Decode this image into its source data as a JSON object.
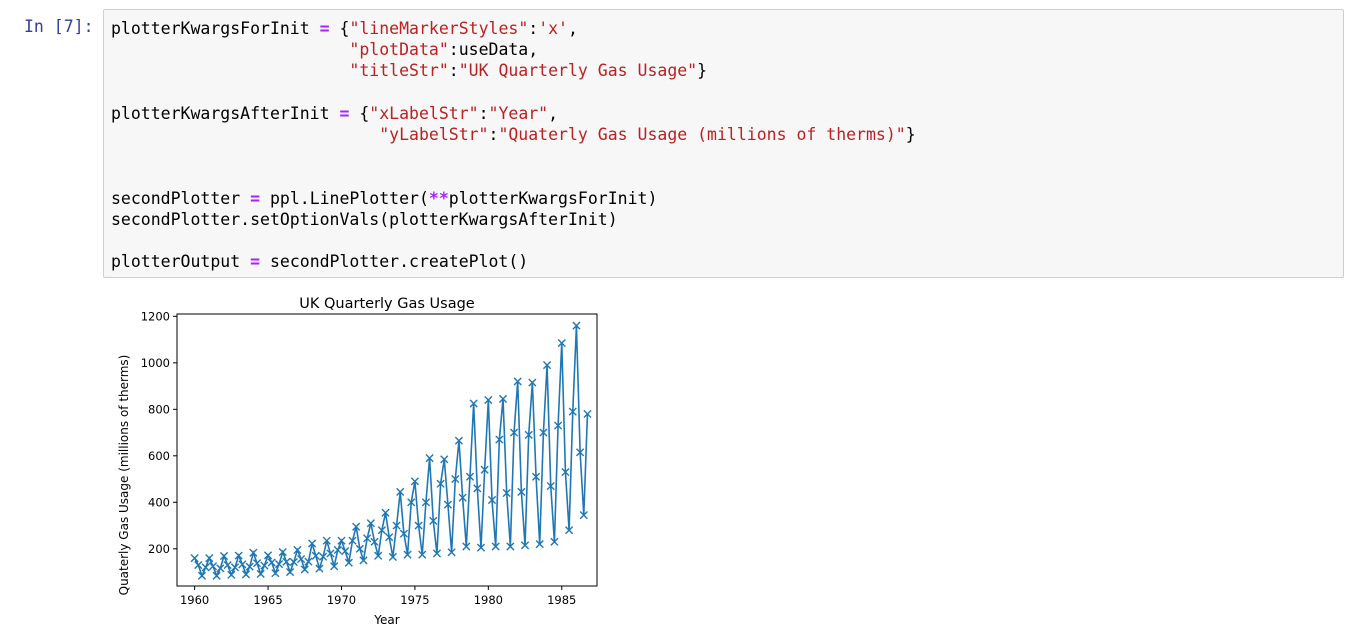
{
  "notebook": {
    "prompt": "In [7]:",
    "code": {
      "line1": {
        "var": "plotterKwargsForInit",
        "eq": "=",
        "open": "{",
        "k1": "\"lineMarkerStyles\"",
        "c1": ":",
        "v1": "'x'",
        "comma": ","
      },
      "line2": {
        "k": "\"plotData\"",
        "c": ":",
        "v": "useData",
        "comma": ","
      },
      "line3": {
        "k": "\"titleStr\"",
        "c": ":",
        "v": "\"UK Quarterly Gas Usage\"",
        "close": "}"
      },
      "line5": {
        "var": "plotterKwargsAfterInit",
        "eq": "=",
        "open": "{",
        "k": "\"xLabelStr\"",
        "c": ":",
        "v": "\"Year\"",
        "comma": ","
      },
      "line6": {
        "k": "\"yLabelStr\"",
        "c": ":",
        "v": "\"Quaterly Gas Usage (millions of therms)\"",
        "close": "}"
      },
      "line9": {
        "var": "secondPlotter",
        "eq": "=",
        "call_pre": "ppl.LinePlotter(",
        "op": "**",
        "call_post": "plotterKwargsForInit)"
      },
      "line10": {
        "text": "secondPlotter.setOptionVals(plotterKwargsAfterInit)"
      },
      "line12": {
        "var": "plotterOutput",
        "eq": "=",
        "rhs": "secondPlotter.createPlot()"
      }
    }
  },
  "chart_data": {
    "type": "line",
    "title": "UK Quarterly Gas Usage",
    "xlabel": "Year",
    "ylabel": "Quaterly Gas Usage (millions of therms)",
    "marker": "x",
    "color": "#1f77b4",
    "xlim": [
      1958.8,
      1987.4
    ],
    "ylim": [
      40,
      1210
    ],
    "xticks": [
      1960,
      1965,
      1970,
      1975,
      1980,
      1985
    ],
    "xtick_labels": [
      "1960",
      "1965",
      "1970",
      "1975",
      "1980",
      "1985"
    ],
    "yticks": [
      200,
      400,
      600,
      800,
      1000,
      1200
    ],
    "ytick_labels": [
      "200",
      "400",
      "600",
      "800",
      "1000",
      "1200"
    ],
    "series": [
      {
        "x": [
          1960.0,
          1960.25,
          1960.5,
          1960.75,
          1961.0,
          1961.25,
          1961.5,
          1961.75,
          1962.0,
          1962.25,
          1962.5,
          1962.75,
          1963.0,
          1963.25,
          1963.5,
          1963.75,
          1964.0,
          1964.25,
          1964.5,
          1964.75,
          1965.0,
          1965.25,
          1965.5,
          1965.75,
          1966.0,
          1966.25,
          1966.5,
          1966.75,
          1967.0,
          1967.25,
          1967.5,
          1967.75,
          1968.0,
          1968.25,
          1968.5,
          1968.75,
          1969.0,
          1969.25,
          1969.5,
          1969.75,
          1970.0,
          1970.25,
          1970.5,
          1970.75,
          1971.0,
          1971.25,
          1971.5,
          1971.75,
          1972.0,
          1972.25,
          1972.5,
          1972.75,
          1973.0,
          1973.25,
          1973.5,
          1973.75,
          1974.0,
          1974.25,
          1974.5,
          1974.75,
          1975.0,
          1975.25,
          1975.5,
          1975.75,
          1976.0,
          1976.25,
          1976.5,
          1976.75,
          1977.0,
          1977.25,
          1977.5,
          1977.75,
          1978.0,
          1978.25,
          1978.5,
          1978.75,
          1979.0,
          1979.25,
          1979.5,
          1979.75,
          1980.0,
          1980.25,
          1980.5,
          1980.75,
          1981.0,
          1981.25,
          1981.5,
          1981.75,
          1982.0,
          1982.25,
          1982.5,
          1982.75,
          1983.0,
          1983.25,
          1983.5,
          1983.75,
          1984.0,
          1984.25,
          1984.5,
          1984.75,
          1985.0,
          1985.25,
          1985.5,
          1985.75,
          1986.0,
          1986.25,
          1986.5,
          1986.75
        ],
        "y": [
          160,
          130,
          84,
          120,
          160,
          125,
          84,
          116,
          169,
          130,
          88,
          120,
          171,
          133,
          90,
          123,
          183,
          138,
          92,
          128,
          172,
          141,
          95,
          134,
          186,
          144,
          100,
          143,
          195,
          156,
          111,
          145,
          223,
          170,
          115,
          166,
          235,
          180,
          125,
          195,
          235,
          190,
          140,
          235,
          295,
          200,
          150,
          245,
          310,
          230,
          170,
          280,
          355,
          250,
          165,
          300,
          445,
          265,
          175,
          400,
          490,
          300,
          175,
          400,
          590,
          320,
          180,
          480,
          585,
          390,
          185,
          500,
          665,
          420,
          210,
          510,
          825,
          460,
          205,
          540,
          840,
          410,
          210,
          670,
          845,
          440,
          210,
          700,
          920,
          445,
          215,
          690,
          915,
          510,
          220,
          700,
          990,
          470,
          230,
          730,
          1085,
          530,
          280,
          790,
          1160,
          615,
          345,
          780
        ]
      }
    ]
  }
}
